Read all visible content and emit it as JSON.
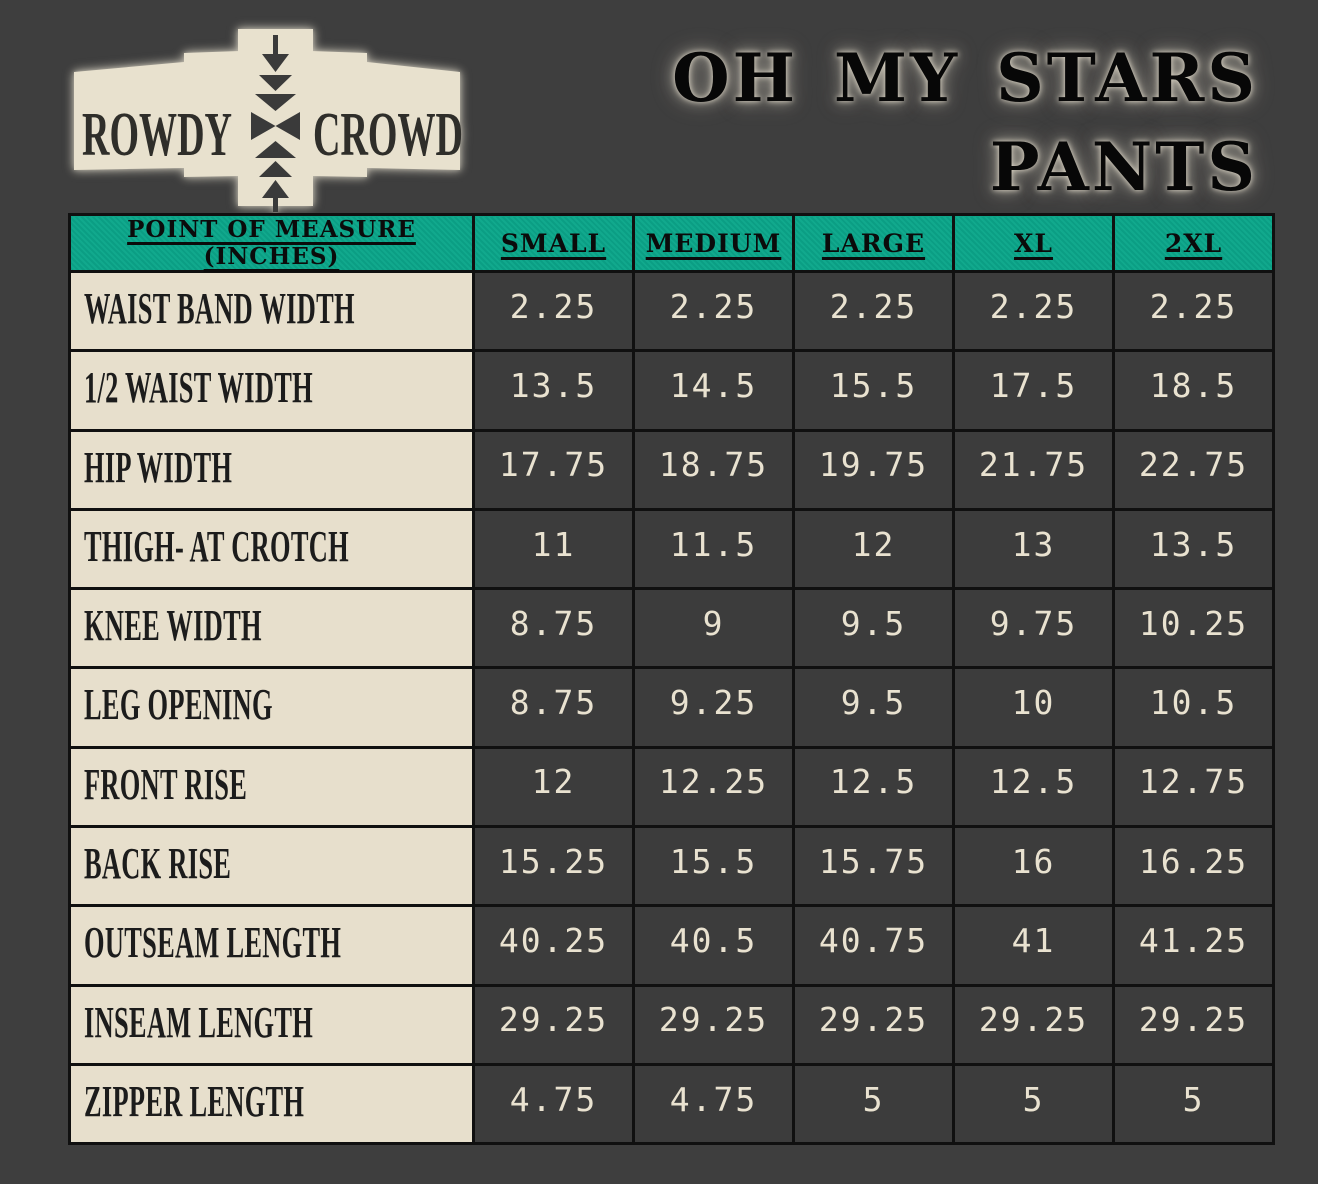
{
  "brand": {
    "logo_left": "ROWDY",
    "logo_right": "CROWD"
  },
  "title": {
    "line1": "OH MY STARS",
    "line2": "PANTS"
  },
  "chart_data": {
    "type": "table",
    "title": "OH MY STARS PANTS",
    "columns": [
      "POINT OF MEASURE (INCHES)",
      "SMALL",
      "MEDIUM",
      "LARGE",
      "XL",
      "2XL"
    ],
    "rows": [
      {
        "label": "WAIST BAND WIDTH",
        "values": [
          "2.25",
          "2.25",
          "2.25",
          "2.25",
          "2.25"
        ]
      },
      {
        "label": "1/2 WAIST WIDTH",
        "values": [
          "13.5",
          "14.5",
          "15.5",
          "17.5",
          "18.5"
        ]
      },
      {
        "label": "HIP WIDTH",
        "values": [
          "17.75",
          "18.75",
          "19.75",
          "21.75",
          "22.75"
        ]
      },
      {
        "label": "THIGH- AT CROTCH",
        "values": [
          "11",
          "11.5",
          "12",
          "13",
          "13.5"
        ]
      },
      {
        "label": "KNEE WIDTH",
        "values": [
          "8.75",
          "9",
          "9.5",
          "9.75",
          "10.25"
        ]
      },
      {
        "label": "LEG OPENING",
        "values": [
          "8.75",
          "9.25",
          "9.5",
          "10",
          "10.5"
        ]
      },
      {
        "label": "FRONT RISE",
        "values": [
          "12",
          "12.25",
          "12.5",
          "12.5",
          "12.75"
        ]
      },
      {
        "label": "BACK RISE",
        "values": [
          "15.25",
          "15.5",
          "15.75",
          "16",
          "16.25"
        ]
      },
      {
        "label": "OUTSEAM LENGTH",
        "values": [
          "40.25",
          "40.5",
          "40.75",
          "41",
          "41.25"
        ]
      },
      {
        "label": "INSEAM LENGTH",
        "values": [
          "29.25",
          "29.25",
          "29.25",
          "29.25",
          "29.25"
        ]
      },
      {
        "label": "ZIPPER LENGTH",
        "values": [
          "4.75",
          "4.75",
          "5",
          "5",
          "5"
        ]
      }
    ]
  },
  "colors": {
    "header_teal": "#0ca78b",
    "label_cream": "#e7dfcc",
    "value_text": "#e9e2d0",
    "background": "#3e3e3e",
    "border": "#101010"
  }
}
